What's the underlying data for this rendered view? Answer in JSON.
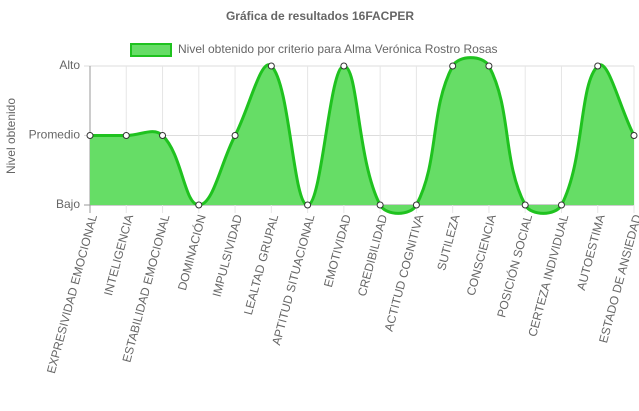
{
  "chart_data": {
    "type": "line",
    "title": "Gráfica de resultados 16FACPER",
    "y_label": "Nivel obtenido",
    "categories": [
      "EXPRESIVIDAD EMOCIONAL",
      "INTELIGENCIA",
      "ESTABILIDAD EMOCIONAL",
      "DOMINACIÓN",
      "IMPULSIVIDAD",
      "LEALTAD GRUPAL",
      "APTITUD SITUACIONAL",
      "EMOTIVIDAD",
      "CREDIBILIDAD",
      "ACTITUD COGNITIVA",
      "SUTILEZA",
      "CONSCIENCIA",
      "POSICIÓN SOCIAL",
      "CERTEZA INDIVIDUAL",
      "AUTOESTIMA",
      "ESTADO DE ANSIEDAD"
    ],
    "series": [
      {
        "name": "Nivel obtenido por criterio para Alma Verónica Rostro Rosas",
        "color": "#1fc21f",
        "fill": "#66dd66",
        "values": [
          2,
          2,
          2,
          1,
          2,
          3,
          1,
          3,
          1,
          1,
          3,
          3,
          1,
          1,
          3,
          2
        ]
      }
    ],
    "ylim": [
      1,
      3
    ],
    "yticks": [
      {
        "value": 1,
        "label": "Bajo"
      },
      {
        "value": 2,
        "label": "Promedio"
      },
      {
        "value": 3,
        "label": "Alto"
      }
    ],
    "grid": true,
    "legend": "top"
  }
}
